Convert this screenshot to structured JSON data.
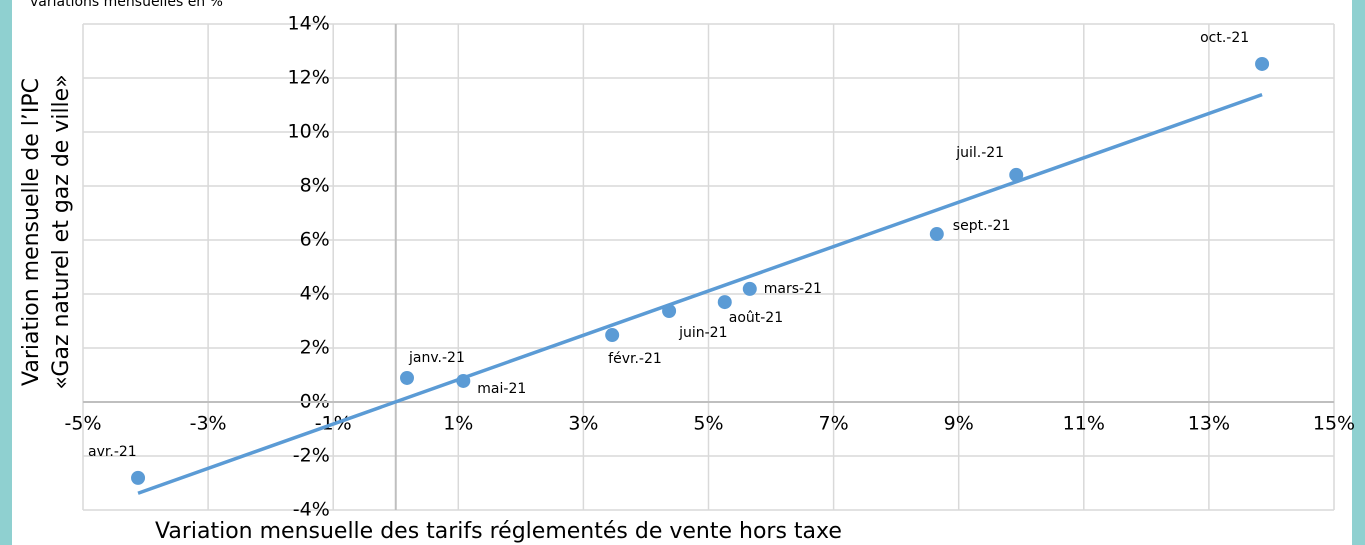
{
  "chart_data": {
    "type": "scatter",
    "subtitle": "variations mensuelles en %",
    "x_label": "Variation mensuelle des tarifs réglementés de vente hors taxe",
    "y_label": [
      "Variation mensuelle de l’IPC",
      "«Gaz naturel et gaz de ville»"
    ],
    "labels": [
      "avr.-21",
      "janv.-21",
      "mai-21",
      "févr.-21",
      "juin-21",
      "août-21",
      "mars-21",
      "sept.-21",
      "juil.-21",
      "oct.-21"
    ],
    "x": [
      -4.12,
      0.18,
      1.08,
      3.46,
      4.37,
      5.26,
      5.66,
      8.65,
      9.92,
      13.85
    ],
    "values": [
      -2.81,
      0.89,
      0.78,
      2.48,
      3.37,
      3.7,
      4.19,
      6.22,
      8.41,
      12.52
    ],
    "color": "#5b9bd5",
    "trendline": "linear",
    "grid": true,
    "xlim": [
      -5,
      15
    ],
    "xticks": [
      {
        "value": -5,
        "label": "-5%"
      },
      {
        "value": -3,
        "label": "-3%"
      },
      {
        "value": -1,
        "label": "-1%"
      },
      {
        "value": 1,
        "label": "1%"
      },
      {
        "value": 3,
        "label": "3%"
      },
      {
        "value": 5,
        "label": "5%"
      },
      {
        "value": 7,
        "label": "7%"
      },
      {
        "value": 9,
        "label": "9%"
      },
      {
        "value": 11,
        "label": "11%"
      },
      {
        "value": 13,
        "label": "13%"
      },
      {
        "value": 15,
        "label": "15%"
      }
    ],
    "ylim": [
      -4,
      14
    ],
    "yticks": [
      {
        "value": -4,
        "label": "-4%"
      },
      {
        "value": -2,
        "label": "-2%"
      },
      {
        "value": 0,
        "label": "0%"
      },
      {
        "value": 2,
        "label": "2%"
      },
      {
        "value": 4,
        "label": "4%"
      },
      {
        "value": 6,
        "label": "6%"
      },
      {
        "value": 8,
        "label": "8%"
      },
      {
        "value": 10,
        "label": "10%"
      },
      {
        "value": 12,
        "label": "12%"
      },
      {
        "value": 14,
        "label": "14%"
      }
    ]
  }
}
